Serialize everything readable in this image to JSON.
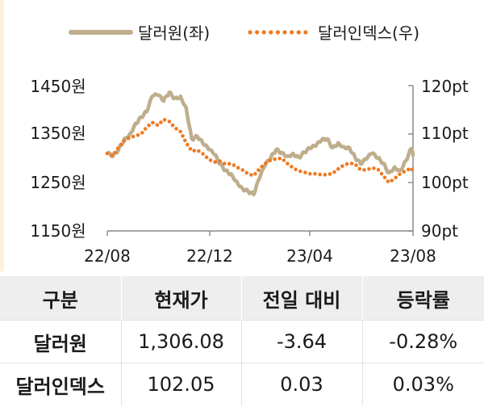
{
  "legend": {
    "left_series": "달러원(좌)",
    "right_series": "달러인덱스(우)"
  },
  "colors": {
    "usdkrw": "#bfae8c",
    "dxy": "#ee7a24",
    "axis": "#8a8a8a",
    "header_bg": "#eeeeee"
  },
  "chart_data": {
    "type": "line",
    "x_tick_labels": [
      "22/08",
      "22/12",
      "23/04",
      "23/08"
    ],
    "x_range": [
      "2022-08-01",
      "2023-08-16"
    ],
    "y_left": {
      "ticks": [
        "1450원",
        "1350원",
        "1250원",
        "1150원"
      ],
      "range": [
        1150,
        1450
      ]
    },
    "y_right": {
      "ticks": [
        "120pt",
        "110pt",
        "100pt",
        "90pt"
      ],
      "range": [
        90,
        120
      ]
    },
    "series": [
      {
        "name": "달러원(좌)",
        "axis": "left",
        "style": "solid",
        "points": [
          [
            "2022-08-01",
            1310
          ],
          [
            "2022-08-08",
            1304
          ],
          [
            "2022-08-15",
            1318
          ],
          [
            "2022-08-22",
            1340
          ],
          [
            "2022-08-29",
            1350
          ],
          [
            "2022-09-05",
            1372
          ],
          [
            "2022-09-12",
            1385
          ],
          [
            "2022-09-19",
            1396
          ],
          [
            "2022-09-26",
            1428
          ],
          [
            "2022-10-03",
            1430
          ],
          [
            "2022-10-10",
            1418
          ],
          [
            "2022-10-17",
            1436
          ],
          [
            "2022-10-24",
            1424
          ],
          [
            "2022-10-31",
            1428
          ],
          [
            "2022-11-07",
            1405
          ],
          [
            "2022-11-14",
            1340
          ],
          [
            "2022-11-21",
            1345
          ],
          [
            "2022-11-28",
            1330
          ],
          [
            "2022-12-05",
            1318
          ],
          [
            "2022-12-12",
            1308
          ],
          [
            "2022-12-19",
            1288
          ],
          [
            "2022-12-26",
            1275
          ],
          [
            "2023-01-02",
            1268
          ],
          [
            "2023-01-09",
            1252
          ],
          [
            "2023-01-16",
            1238
          ],
          [
            "2023-01-23",
            1232
          ],
          [
            "2023-01-30",
            1225
          ],
          [
            "2023-02-06",
            1258
          ],
          [
            "2023-02-13",
            1285
          ],
          [
            "2023-02-20",
            1300
          ],
          [
            "2023-02-27",
            1318
          ],
          [
            "2023-03-06",
            1312
          ],
          [
            "2023-03-13",
            1305
          ],
          [
            "2023-03-20",
            1310
          ],
          [
            "2023-03-27",
            1302
          ],
          [
            "2023-04-03",
            1312
          ],
          [
            "2023-04-10",
            1320
          ],
          [
            "2023-04-17",
            1325
          ],
          [
            "2023-04-24",
            1336
          ],
          [
            "2023-05-01",
            1340
          ],
          [
            "2023-05-08",
            1322
          ],
          [
            "2023-05-15",
            1332
          ],
          [
            "2023-05-22",
            1324
          ],
          [
            "2023-05-29",
            1322
          ],
          [
            "2023-06-05",
            1302
          ],
          [
            "2023-06-12",
            1288
          ],
          [
            "2023-06-19",
            1298
          ],
          [
            "2023-06-26",
            1310
          ],
          [
            "2023-07-03",
            1300
          ],
          [
            "2023-07-10",
            1290
          ],
          [
            "2023-07-17",
            1270
          ],
          [
            "2023-07-24",
            1282
          ],
          [
            "2023-07-31",
            1275
          ],
          [
            "2023-08-07",
            1295
          ],
          [
            "2023-08-14",
            1320
          ],
          [
            "2023-08-16",
            1306
          ]
        ]
      },
      {
        "name": "달러인덱스(우)",
        "axis": "right",
        "style": "dotted",
        "points": [
          [
            "2022-08-01",
            106.0
          ],
          [
            "2022-08-08",
            105.5
          ],
          [
            "2022-08-15",
            107.3
          ],
          [
            "2022-08-22",
            108.6
          ],
          [
            "2022-08-29",
            109.3
          ],
          [
            "2022-09-05",
            109.6
          ],
          [
            "2022-09-12",
            110.0
          ],
          [
            "2022-09-19",
            111.4
          ],
          [
            "2022-09-26",
            112.4
          ],
          [
            "2022-10-03",
            111.8
          ],
          [
            "2022-10-10",
            113.0
          ],
          [
            "2022-10-17",
            112.6
          ],
          [
            "2022-10-24",
            111.3
          ],
          [
            "2022-10-31",
            110.5
          ],
          [
            "2022-11-07",
            108.2
          ],
          [
            "2022-11-14",
            106.5
          ],
          [
            "2022-11-21",
            106.7
          ],
          [
            "2022-11-28",
            105.9
          ],
          [
            "2022-12-05",
            104.8
          ],
          [
            "2022-12-12",
            104.2
          ],
          [
            "2022-12-19",
            104.4
          ],
          [
            "2022-12-26",
            103.8
          ],
          [
            "2023-01-02",
            103.9
          ],
          [
            "2023-01-09",
            103.2
          ],
          [
            "2023-01-16",
            102.6
          ],
          [
            "2023-01-23",
            101.8
          ],
          [
            "2023-01-30",
            101.4
          ],
          [
            "2023-02-06",
            102.8
          ],
          [
            "2023-02-13",
            103.9
          ],
          [
            "2023-02-20",
            104.6
          ],
          [
            "2023-02-27",
            104.9
          ],
          [
            "2023-03-06",
            105.0
          ],
          [
            "2023-03-13",
            103.9
          ],
          [
            "2023-03-20",
            103.0
          ],
          [
            "2023-03-27",
            102.4
          ],
          [
            "2023-04-03",
            102.1
          ],
          [
            "2023-04-10",
            101.8
          ],
          [
            "2023-04-17",
            101.8
          ],
          [
            "2023-04-24",
            101.6
          ],
          [
            "2023-05-01",
            101.6
          ],
          [
            "2023-05-08",
            101.9
          ],
          [
            "2023-05-15",
            102.8
          ],
          [
            "2023-05-22",
            103.6
          ],
          [
            "2023-05-29",
            104.0
          ],
          [
            "2023-06-05",
            103.8
          ],
          [
            "2023-06-12",
            102.6
          ],
          [
            "2023-06-19",
            102.6
          ],
          [
            "2023-06-26",
            103.0
          ],
          [
            "2023-07-03",
            102.8
          ],
          [
            "2023-07-10",
            101.4
          ],
          [
            "2023-07-17",
            100.0
          ],
          [
            "2023-07-24",
            100.8
          ],
          [
            "2023-07-31",
            101.8
          ],
          [
            "2023-08-07",
            102.4
          ],
          [
            "2023-08-14",
            103.0
          ],
          [
            "2023-08-16",
            102.05
          ]
        ]
      }
    ]
  },
  "table": {
    "headers": [
      "구분",
      "현재가",
      "전일 대비",
      "등락률"
    ],
    "rows": [
      {
        "name": "달러원",
        "price": "1,306.08",
        "change": "-3.64",
        "rate": "-0.28%"
      },
      {
        "name": "달러인덱스",
        "price": "102.05",
        "change": "0.03",
        "rate": "0.03%"
      }
    ]
  }
}
